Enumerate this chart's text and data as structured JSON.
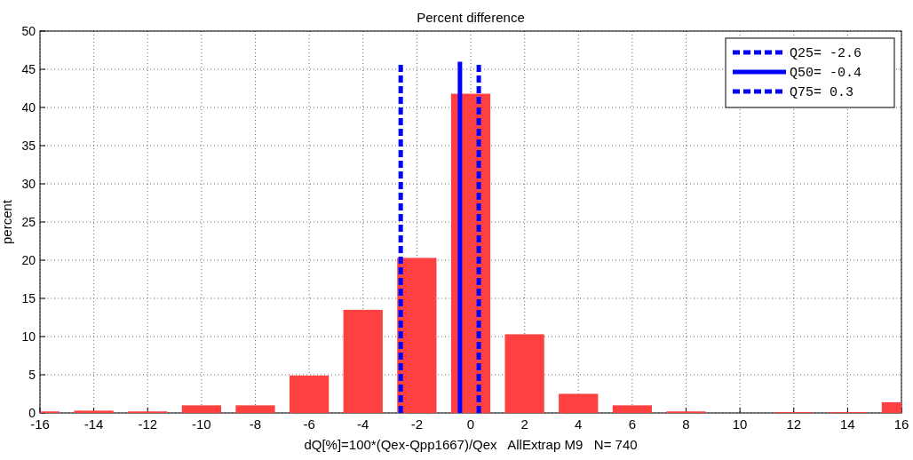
{
  "chart_data": {
    "type": "bar",
    "title": "Percent difference",
    "xlabel": "dQ[%]=100*(Qex-Qpp1667)/Qex   AllExtrap M9   N= 740",
    "ylabel": "percent",
    "x": [
      -16,
      -14,
      -12,
      -10,
      -8,
      -6,
      -4,
      -2,
      0,
      2,
      4,
      6,
      8,
      10,
      12,
      14,
      16
    ],
    "series": [
      {
        "color": "#ff4040",
        "values": [
          0.2,
          0.3,
          0.2,
          1.0,
          1.0,
          4.9,
          13.5,
          20.3,
          41.8,
          10.3,
          2.5,
          1.0,
          0.2,
          0,
          0.1,
          0.1,
          1.4
        ]
      },
      {
        "type": "line",
        "name": "Q25= -2.6",
        "color": "#0000ff",
        "line_style": "dashed",
        "x": [
          -2.6,
          -2.6
        ],
        "values": [
          0,
          46
        ]
      },
      {
        "type": "line",
        "name": "Q50= -0.4",
        "color": "#0000ff",
        "line_style": "solid",
        "x": [
          -0.4,
          -0.4
        ],
        "values": [
          0,
          46
        ]
      },
      {
        "type": "line",
        "name": "Q75= 0.3",
        "color": "#0000ff",
        "line_style": "dashed",
        "x": [
          0.3,
          0.3
        ],
        "values": [
          0,
          46
        ]
      }
    ],
    "xlim": [
      -16,
      16
    ],
    "xticks": [
      -16,
      -14,
      -12,
      -10,
      -8,
      -6,
      -4,
      -2,
      0,
      2,
      4,
      6,
      8,
      10,
      12,
      14,
      16
    ],
    "ylim": [
      0,
      50
    ],
    "yticks": [
      0,
      5,
      10,
      15,
      20,
      25,
      30,
      35,
      40,
      45,
      50
    ],
    "grid": true,
    "legend": "top right"
  }
}
